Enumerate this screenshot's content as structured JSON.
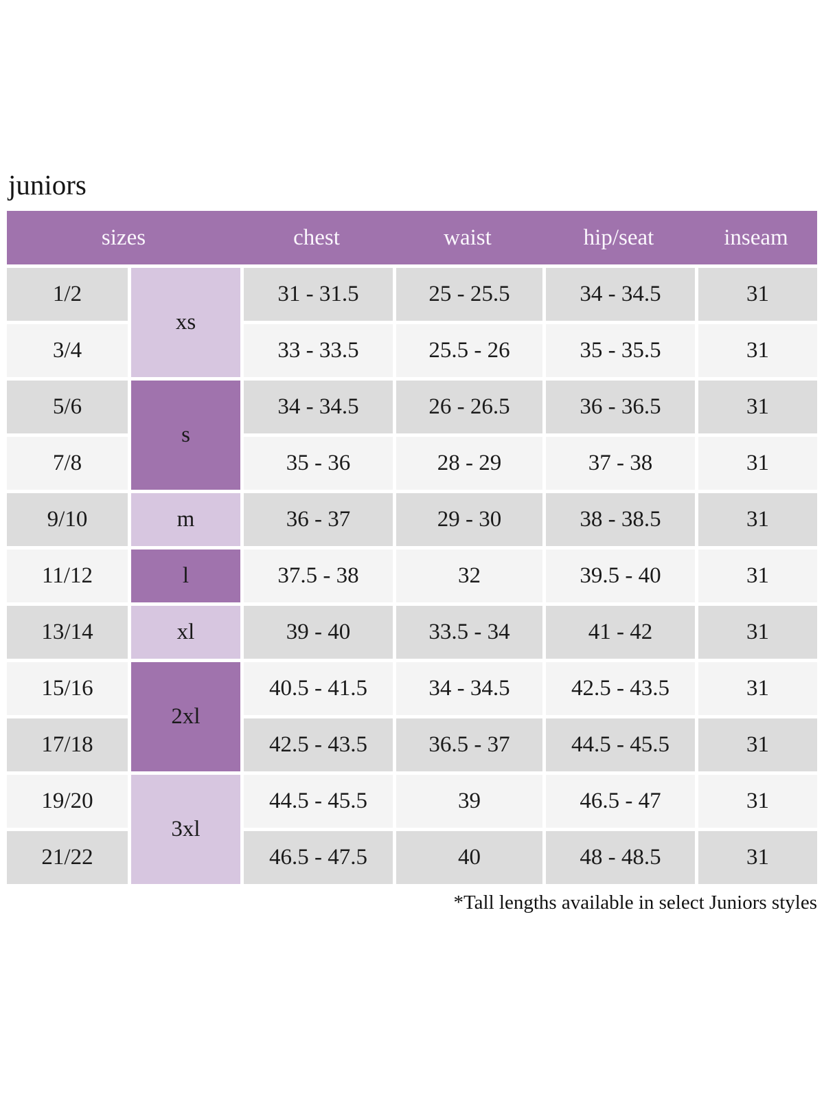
{
  "page": {
    "title": "juniors",
    "footnote": "*Tall lengths available in select Juniors styles"
  },
  "colors": {
    "header_bg": "#a073ad",
    "size_label_dark_bg": "#a073ad",
    "size_label_light_bg": "#d7c6e0",
    "row_dark_bg": "#dcdcdc",
    "row_light_bg": "#f4f4f4",
    "header_text": "#fbf7fd",
    "body_text": "#1a1a1a"
  },
  "table": {
    "columns": [
      "sizes",
      "chest",
      "waist",
      "hip/seat",
      "inseam"
    ],
    "groups": [
      {
        "size_label": "xs",
        "label_style": "light",
        "rows": [
          {
            "size": "1/2",
            "chest": "31 - 31.5",
            "waist": "25 - 25.5",
            "hip_seat": "34 - 34.5",
            "inseam": "31"
          },
          {
            "size": "3/4",
            "chest": "33 - 33.5",
            "waist": "25.5 - 26",
            "hip_seat": "35 - 35.5",
            "inseam": "31"
          }
        ]
      },
      {
        "size_label": "s",
        "label_style": "dark",
        "rows": [
          {
            "size": "5/6",
            "chest": "34 - 34.5",
            "waist": "26 - 26.5",
            "hip_seat": "36 - 36.5",
            "inseam": "31"
          },
          {
            "size": "7/8",
            "chest": "35 - 36",
            "waist": "28 - 29",
            "hip_seat": "37 - 38",
            "inseam": "31"
          }
        ]
      },
      {
        "size_label": "m",
        "label_style": "light",
        "rows": [
          {
            "size": "9/10",
            "chest": "36 - 37",
            "waist": "29 - 30",
            "hip_seat": "38 - 38.5",
            "inseam": "31"
          }
        ]
      },
      {
        "size_label": "l",
        "label_style": "dark",
        "rows": [
          {
            "size": "11/12",
            "chest": "37.5 - 38",
            "waist": "32",
            "hip_seat": "39.5 - 40",
            "inseam": "31"
          }
        ]
      },
      {
        "size_label": "xl",
        "label_style": "light",
        "rows": [
          {
            "size": "13/14",
            "chest": "39 - 40",
            "waist": "33.5 - 34",
            "hip_seat": "41 - 42",
            "inseam": "31"
          }
        ]
      },
      {
        "size_label": "2xl",
        "label_style": "dark",
        "rows": [
          {
            "size": "15/16",
            "chest": "40.5 - 41.5",
            "waist": "34 - 34.5",
            "hip_seat": "42.5 - 43.5",
            "inseam": "31"
          },
          {
            "size": "17/18",
            "chest": "42.5 - 43.5",
            "waist": "36.5 - 37",
            "hip_seat": "44.5 - 45.5",
            "inseam": "31"
          }
        ]
      },
      {
        "size_label": "3xl",
        "label_style": "light",
        "rows": [
          {
            "size": "19/20",
            "chest": "44.5 - 45.5",
            "waist": "39",
            "hip_seat": "46.5 - 47",
            "inseam": "31"
          },
          {
            "size": "21/22",
            "chest": "46.5 - 47.5",
            "waist": "40",
            "hip_seat": "48 - 48.5",
            "inseam": "31"
          }
        ]
      }
    ]
  }
}
